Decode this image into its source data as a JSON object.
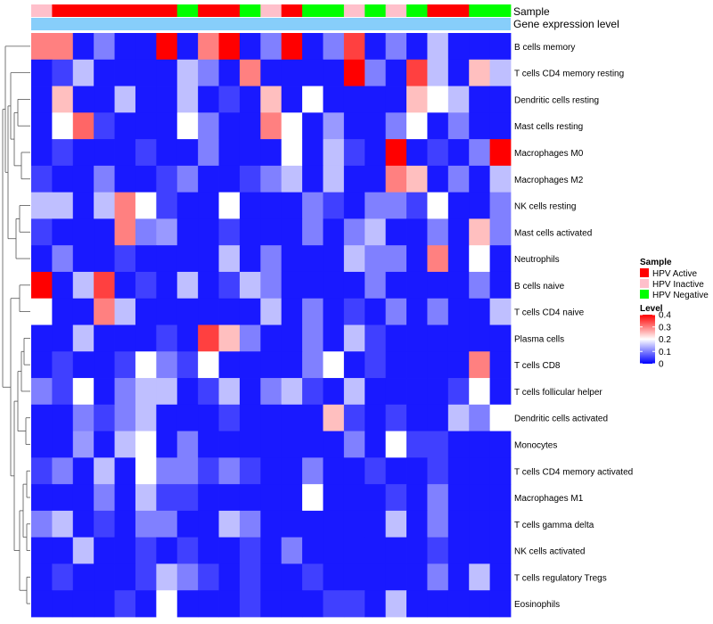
{
  "chart_data": {
    "type": "heatmap",
    "title": "",
    "annotation_tracks": [
      {
        "label": "Sample",
        "values": [
          "HPV Inactive",
          "HPV Active",
          "HPV Active",
          "HPV Active",
          "HPV Active",
          "HPV Active",
          "HPV Active",
          "HPV Negative",
          "HPV Active",
          "HPV Active",
          "HPV Negative",
          "HPV Inactive",
          "HPV Active",
          "HPV Negative",
          "HPV Negative",
          "HPV Inactive",
          "HPV Negative",
          "HPV Inactive",
          "HPV Negative",
          "HPV Active",
          "HPV Active",
          "HPV Negative",
          "HPV Negative"
        ]
      },
      {
        "label": "Gene expression level"
      }
    ],
    "columns": 23,
    "rows": [
      "B cells memory",
      "T cells CD4 memory resting",
      "Dendritic cells resting",
      "Mast cells resting",
      "Macrophages M0",
      "Macrophages M2",
      "NK cells resting",
      "Mast cells activated",
      "Neutrophils",
      "B cells naive",
      "T cells CD4 naive",
      "Plasma cells",
      "T cells CD8",
      "T cells follicular helper",
      "Dendritic cells activated",
      "Monocytes",
      "T cells CD4 memory activated",
      "Macrophages M1",
      "T cells gamma delta",
      "NK cells activated",
      "T cells regulatory  Tregs",
      "Eosinophils"
    ],
    "values": [
      [
        0.3,
        0.3,
        0.02,
        0.1,
        0.02,
        0.02,
        0.4,
        0.02,
        0.3,
        0.4,
        0.02,
        0.1,
        0.4,
        0.02,
        0.1,
        0.35,
        0.02,
        0.1,
        0.02,
        0.15,
        0.02,
        0.02,
        0.02
      ],
      [
        0.02,
        0.05,
        0.15,
        0.02,
        0.02,
        0.02,
        0.02,
        0.15,
        0.1,
        0.02,
        0.3,
        0.02,
        0.02,
        0.02,
        0.02,
        0.4,
        0.1,
        0.02,
        0.35,
        0.15,
        0.02,
        0.25,
        0.15
      ],
      [
        0.02,
        0.25,
        0.02,
        0.02,
        0.15,
        0.02,
        0.02,
        0.15,
        0.02,
        0.05,
        0.02,
        0.25,
        0.02,
        0.2,
        0.02,
        0.02,
        0.02,
        0.02,
        0.25,
        0.2,
        0.15,
        0.02,
        0.02
      ],
      [
        0.02,
        0.2,
        0.32,
        0.05,
        0.02,
        0.02,
        0.02,
        0.2,
        0.1,
        0.02,
        0.02,
        0.3,
        0.2,
        0.02,
        0.12,
        0.02,
        0.02,
        0.1,
        0.2,
        0.02,
        0.1,
        0.02,
        0.02
      ],
      [
        0.02,
        0.05,
        0.02,
        0.02,
        0.02,
        0.05,
        0.02,
        0.02,
        0.1,
        0.02,
        0.02,
        0.02,
        0.2,
        0.02,
        0.15,
        0.05,
        0.02,
        0.4,
        0.02,
        0.05,
        0.02,
        0.1,
        0.4
      ],
      [
        0.05,
        0.02,
        0.02,
        0.1,
        0.02,
        0.02,
        0.05,
        0.1,
        0.02,
        0.02,
        0.05,
        0.1,
        0.15,
        0.02,
        0.15,
        0.02,
        0.02,
        0.3,
        0.25,
        0.02,
        0.1,
        0.02,
        0.15
      ],
      [
        0.15,
        0.15,
        0.02,
        0.15,
        0.3,
        0.2,
        0.05,
        0.02,
        0.02,
        0.2,
        0.02,
        0.02,
        0.02,
        0.1,
        0.05,
        0.02,
        0.1,
        0.1,
        0.05,
        0.2,
        0.02,
        0.02,
        0.1
      ],
      [
        0.05,
        0.02,
        0.02,
        0.02,
        0.3,
        0.1,
        0.12,
        0.02,
        0.02,
        0.05,
        0.02,
        0.02,
        0.02,
        0.1,
        0.02,
        0.1,
        0.15,
        0.02,
        0.02,
        0.1,
        0.02,
        0.25,
        0.1
      ],
      [
        0.02,
        0.1,
        0.02,
        0.02,
        0.05,
        0.02,
        0.02,
        0.02,
        0.02,
        0.15,
        0.02,
        0.1,
        0.02,
        0.02,
        0.02,
        0.15,
        0.1,
        0.1,
        0.02,
        0.3,
        0.02,
        0.2,
        0.02
      ],
      [
        0.4,
        0.02,
        0.15,
        0.35,
        0.02,
        0.05,
        0.02,
        0.15,
        0.02,
        0.05,
        0.15,
        0.1,
        0.02,
        0.02,
        0.02,
        0.02,
        0.1,
        0.02,
        0.02,
        0.02,
        0.02,
        0.1,
        0.02
      ],
      [
        0.2,
        0.02,
        0.02,
        0.3,
        0.15,
        0.02,
        0.02,
        0.02,
        0.02,
        0.02,
        0.02,
        0.15,
        0.02,
        0.1,
        0.02,
        0.05,
        0.02,
        0.1,
        0.02,
        0.1,
        0.02,
        0.02,
        0.15
      ],
      [
        0.02,
        0.02,
        0.15,
        0.02,
        0.02,
        0.02,
        0.05,
        0.02,
        0.35,
        0.25,
        0.1,
        0.02,
        0.02,
        0.1,
        0.02,
        0.15,
        0.05,
        0.02,
        0.02,
        0.02,
        0.02,
        0.02,
        0.02
      ],
      [
        0.02,
        0.05,
        0.02,
        0.02,
        0.05,
        0.2,
        0.1,
        0.05,
        0.2,
        0.02,
        0.02,
        0.02,
        0.02,
        0.1,
        0.2,
        0.02,
        0.05,
        0.02,
        0.02,
        0.02,
        0.02,
        0.3,
        0.02
      ],
      [
        0.1,
        0.05,
        0.2,
        0.02,
        0.1,
        0.15,
        0.15,
        0.02,
        0.05,
        0.15,
        0.02,
        0.1,
        0.15,
        0.05,
        0.02,
        0.15,
        0.02,
        0.02,
        0.02,
        0.02,
        0.05,
        0.2,
        0.02
      ],
      [
        0.02,
        0.02,
        0.1,
        0.05,
        0.1,
        0.15,
        0.02,
        0.02,
        0.02,
        0.05,
        0.02,
        0.02,
        0.02,
        0.02,
        0.25,
        0.05,
        0.02,
        0.05,
        0.02,
        0.02,
        0.15,
        0.1,
        0.2
      ],
      [
        0.02,
        0.02,
        0.12,
        0.02,
        0.15,
        0.2,
        0.02,
        0.1,
        0.02,
        0.02,
        0.02,
        0.02,
        0.02,
        0.02,
        0.02,
        0.1,
        0.02,
        0.2,
        0.05,
        0.05,
        0.02,
        0.02,
        0.02
      ],
      [
        0.05,
        0.1,
        0.02,
        0.15,
        0.02,
        0.2,
        0.1,
        0.1,
        0.05,
        0.1,
        0.05,
        0.02,
        0.02,
        0.1,
        0.02,
        0.02,
        0.05,
        0.02,
        0.02,
        0.05,
        0.02,
        0.02,
        0.02
      ],
      [
        0.02,
        0.02,
        0.02,
        0.1,
        0.02,
        0.15,
        0.05,
        0.05,
        0.02,
        0.02,
        0.02,
        0.02,
        0.02,
        0.2,
        0.02,
        0.02,
        0.02,
        0.05,
        0.02,
        0.1,
        0.02,
        0.02,
        0.02
      ],
      [
        0.1,
        0.15,
        0.02,
        0.05,
        0.02,
        0.1,
        0.1,
        0.02,
        0.02,
        0.15,
        0.1,
        0.02,
        0.02,
        0.02,
        0.02,
        0.02,
        0.02,
        0.15,
        0.02,
        0.1,
        0.02,
        0.02,
        0.02
      ],
      [
        0.02,
        0.02,
        0.15,
        0.02,
        0.02,
        0.05,
        0.02,
        0.05,
        0.02,
        0.02,
        0.05,
        0.02,
        0.1,
        0.02,
        0.02,
        0.02,
        0.02,
        0.02,
        0.02,
        0.05,
        0.02,
        0.02,
        0.02
      ],
      [
        0.02,
        0.05,
        0.02,
        0.02,
        0.02,
        0.05,
        0.15,
        0.1,
        0.05,
        0.02,
        0.05,
        0.02,
        0.02,
        0.05,
        0.02,
        0.02,
        0.02,
        0.02,
        0.02,
        0.1,
        0.02,
        0.15,
        0.02
      ],
      [
        0.02,
        0.02,
        0.02,
        0.02,
        0.05,
        0.02,
        0.2,
        0.02,
        0.02,
        0.02,
        0.05,
        0.02,
        0.02,
        0.02,
        0.05,
        0.05,
        0.02,
        0.15,
        0.02,
        0.02,
        0.02,
        0.02,
        0.02
      ]
    ],
    "legend": {
      "sample": {
        "title": "Sample",
        "entries": [
          "HPV Active",
          "HPV Inactive",
          "HPV Negative"
        ],
        "colors": [
          "#ff0000",
          "#ffc0cb",
          "#00ff00"
        ]
      },
      "level": {
        "title": "Level",
        "ticks": [
          "0.4",
          "0.3",
          "0.2",
          "0.1",
          "0"
        ],
        "range": [
          0,
          0.4
        ]
      }
    },
    "colors": {
      "low": "#0000ff",
      "mid": "#ffffff",
      "high": "#ff0000",
      "expression_track": "#87cefa"
    }
  }
}
